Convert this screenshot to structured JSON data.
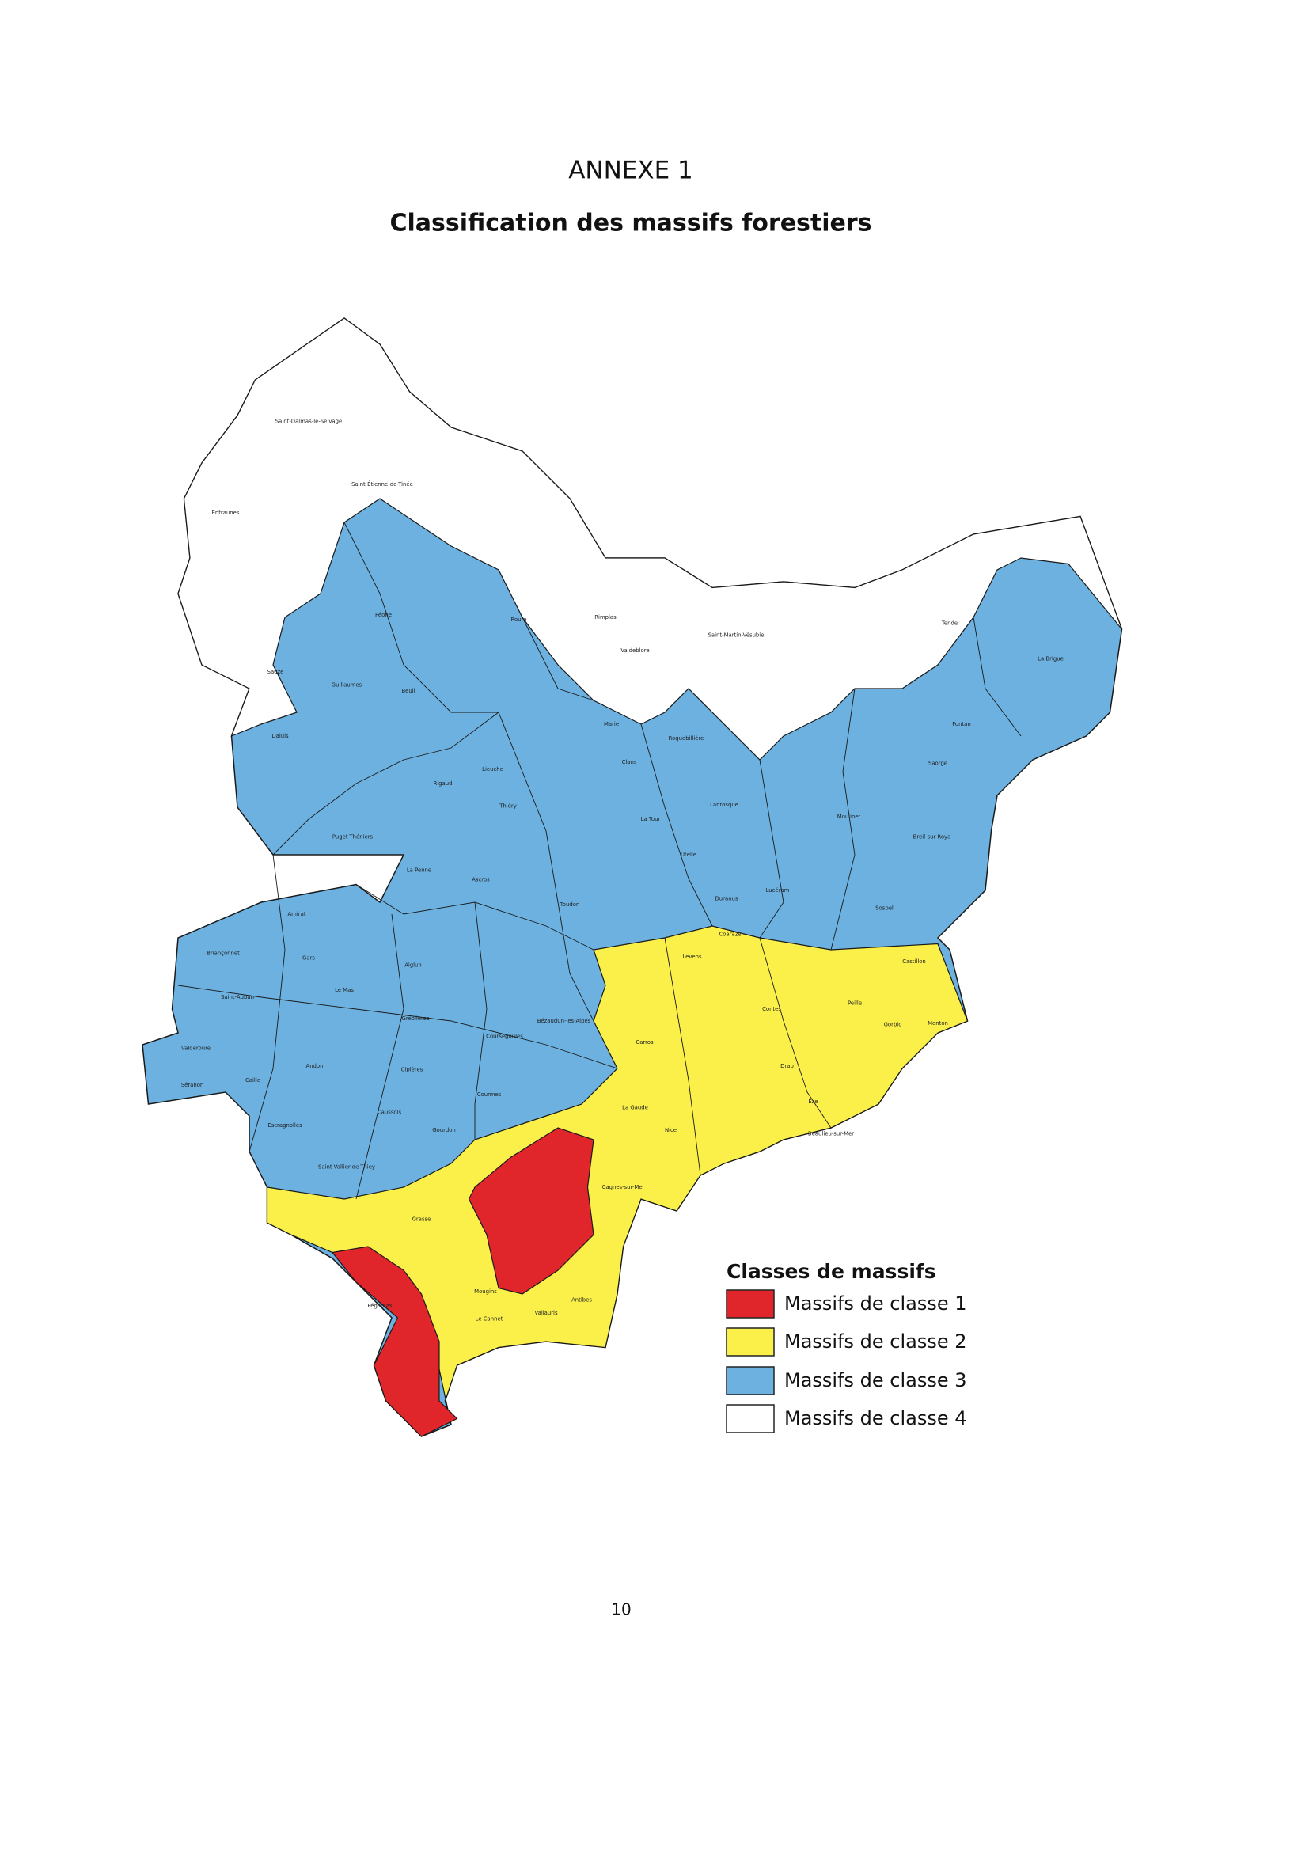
{
  "header": {
    "title": "ANNEXE 1",
    "subtitle": "Classification des massifs forestiers"
  },
  "map": {
    "labels": [
      "Nice",
      "Grasse",
      "Antibes",
      "Tende",
      "La Brigue",
      "Fontan",
      "Saorge",
      "Breil-sur-Roya",
      "Moulinet",
      "Sospel",
      "Lucéram",
      "Lantosque",
      "La Tour",
      "Utelle",
      "Clans",
      "Marie",
      "Rimplas",
      "Valdeblore",
      "Saint-Martin-Vésubie",
      "Roquebillière",
      "Levens",
      "Contes",
      "Peille",
      "Menton",
      "Castillon",
      "Drap",
      "Èze",
      "Beaulieu-sur-Mer",
      "Cagnes-sur-Mer",
      "Carros",
      "Vallauris",
      "Le Cannet",
      "Mougins",
      "Saint-Auban",
      "Valderoure",
      "Séranon",
      "Caille",
      "Andon",
      "Gréolières",
      "Coursegoules",
      "Cipières",
      "Caussols",
      "Gourdon",
      "Saint-Vallier-de-Thiey",
      "Escragnolles",
      "Briançonnet",
      "Gars",
      "Le Mas",
      "Amirat",
      "Aiglun",
      "Bézaudun-les-Alpes",
      "Courmes",
      "Toudon",
      "Puget-Théniers",
      "Rigaud",
      "Thiéry",
      "Lieuche",
      "La Penne",
      "Ascros",
      "Guillaumes",
      "Péone",
      "Daluis",
      "Entraunes",
      "Saint-Dalmas-le-Selvage",
      "Roure",
      "Beuil",
      "Sauze",
      "Saint-Étienne-de-Tinée",
      "Duranus",
      "Coaraze",
      "Gorbio",
      "La Gaude",
      "Pégomas"
    ]
  },
  "legend": {
    "title": "Classes de massifs",
    "items": [
      {
        "label": "Massifs de classe 1",
        "color": "#e0262b"
      },
      {
        "label": "Massifs de classe 2",
        "color": "#fbf04a"
      },
      {
        "label": "Massifs de classe 3",
        "color": "#6cb1e0"
      },
      {
        "label": "Massifs de classe 4",
        "color": "#ffffff"
      }
    ]
  },
  "footer": {
    "page_number": "10"
  }
}
